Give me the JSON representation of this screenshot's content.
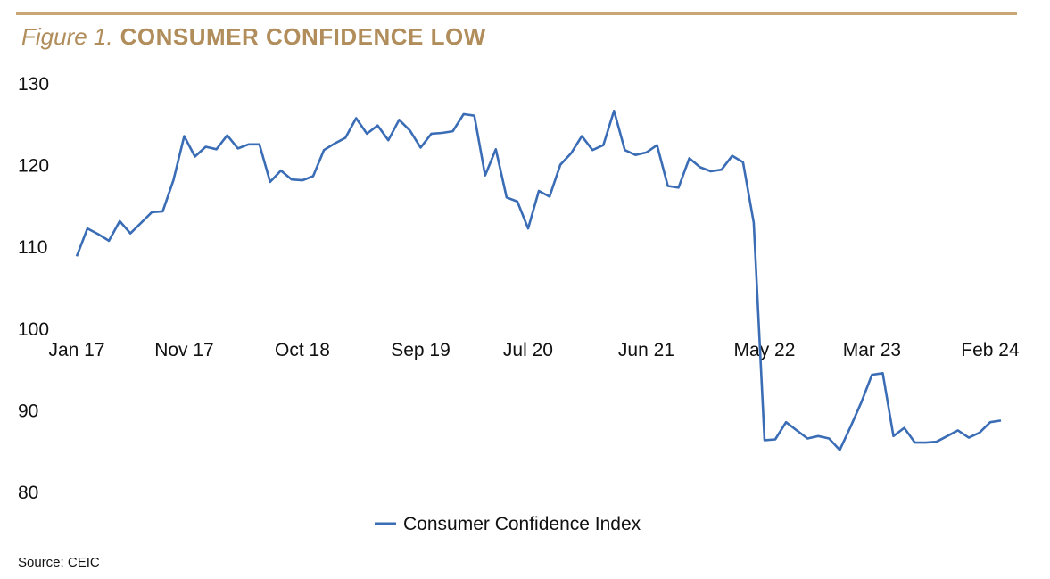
{
  "figure_label": "Figure 1.",
  "title": "CONSUMER CONFIDENCE LOW",
  "source": "Source: CEIC",
  "colors": {
    "line": "#3a6db5",
    "accent": "#c9a875",
    "title": "#b08d5a"
  },
  "chart_data": {
    "type": "line",
    "title": "CONSUMER CONFIDENCE LOW",
    "xlabel": "",
    "ylabel": "",
    "ylim": [
      80,
      130
    ],
    "yticks": [
      130,
      120,
      110,
      100,
      90,
      80
    ],
    "xtick_labels": [
      "Jan 17",
      "Nov 17",
      "Oct 18",
      "Sep 19",
      "Jul 20",
      "Jun 21",
      "May 22",
      "Mar 23",
      "Feb 24"
    ],
    "xtick_index": [
      0,
      10,
      21,
      32,
      42,
      53,
      64,
      74,
      85
    ],
    "x_axis_crosses_at": 100,
    "grid": false,
    "legend_position": "bottom-center",
    "series": [
      {
        "name": "Consumer Confidence Index",
        "values": [
          108.9,
          112.3,
          111.6,
          110.8,
          113.2,
          111.7,
          113.0,
          114.3,
          114.4,
          118.2,
          123.6,
          121.1,
          122.3,
          122.0,
          123.7,
          122.1,
          122.6,
          122.6,
          118.0,
          119.4,
          118.3,
          118.2,
          118.7,
          121.9,
          122.7,
          123.4,
          125.8,
          123.9,
          124.9,
          123.1,
          125.6,
          124.3,
          122.2,
          123.9,
          124.0,
          124.2,
          126.3,
          126.1,
          118.8,
          122.0,
          116.1,
          115.6,
          112.3,
          116.9,
          116.2,
          120.1,
          121.5,
          123.6,
          121.9,
          122.5,
          126.7,
          121.9,
          121.3,
          121.6,
          122.5,
          117.5,
          117.3,
          120.9,
          119.8,
          119.3,
          119.5,
          121.2,
          120.4,
          113.0,
          86.4,
          86.5,
          88.6,
          87.6,
          86.6,
          86.9,
          86.6,
          85.2,
          88.0,
          91.0,
          94.4,
          94.6,
          86.9,
          87.9,
          86.1,
          86.1,
          86.2,
          86.9,
          87.6,
          86.7,
          87.3,
          88.6,
          88.8
        ]
      }
    ]
  }
}
